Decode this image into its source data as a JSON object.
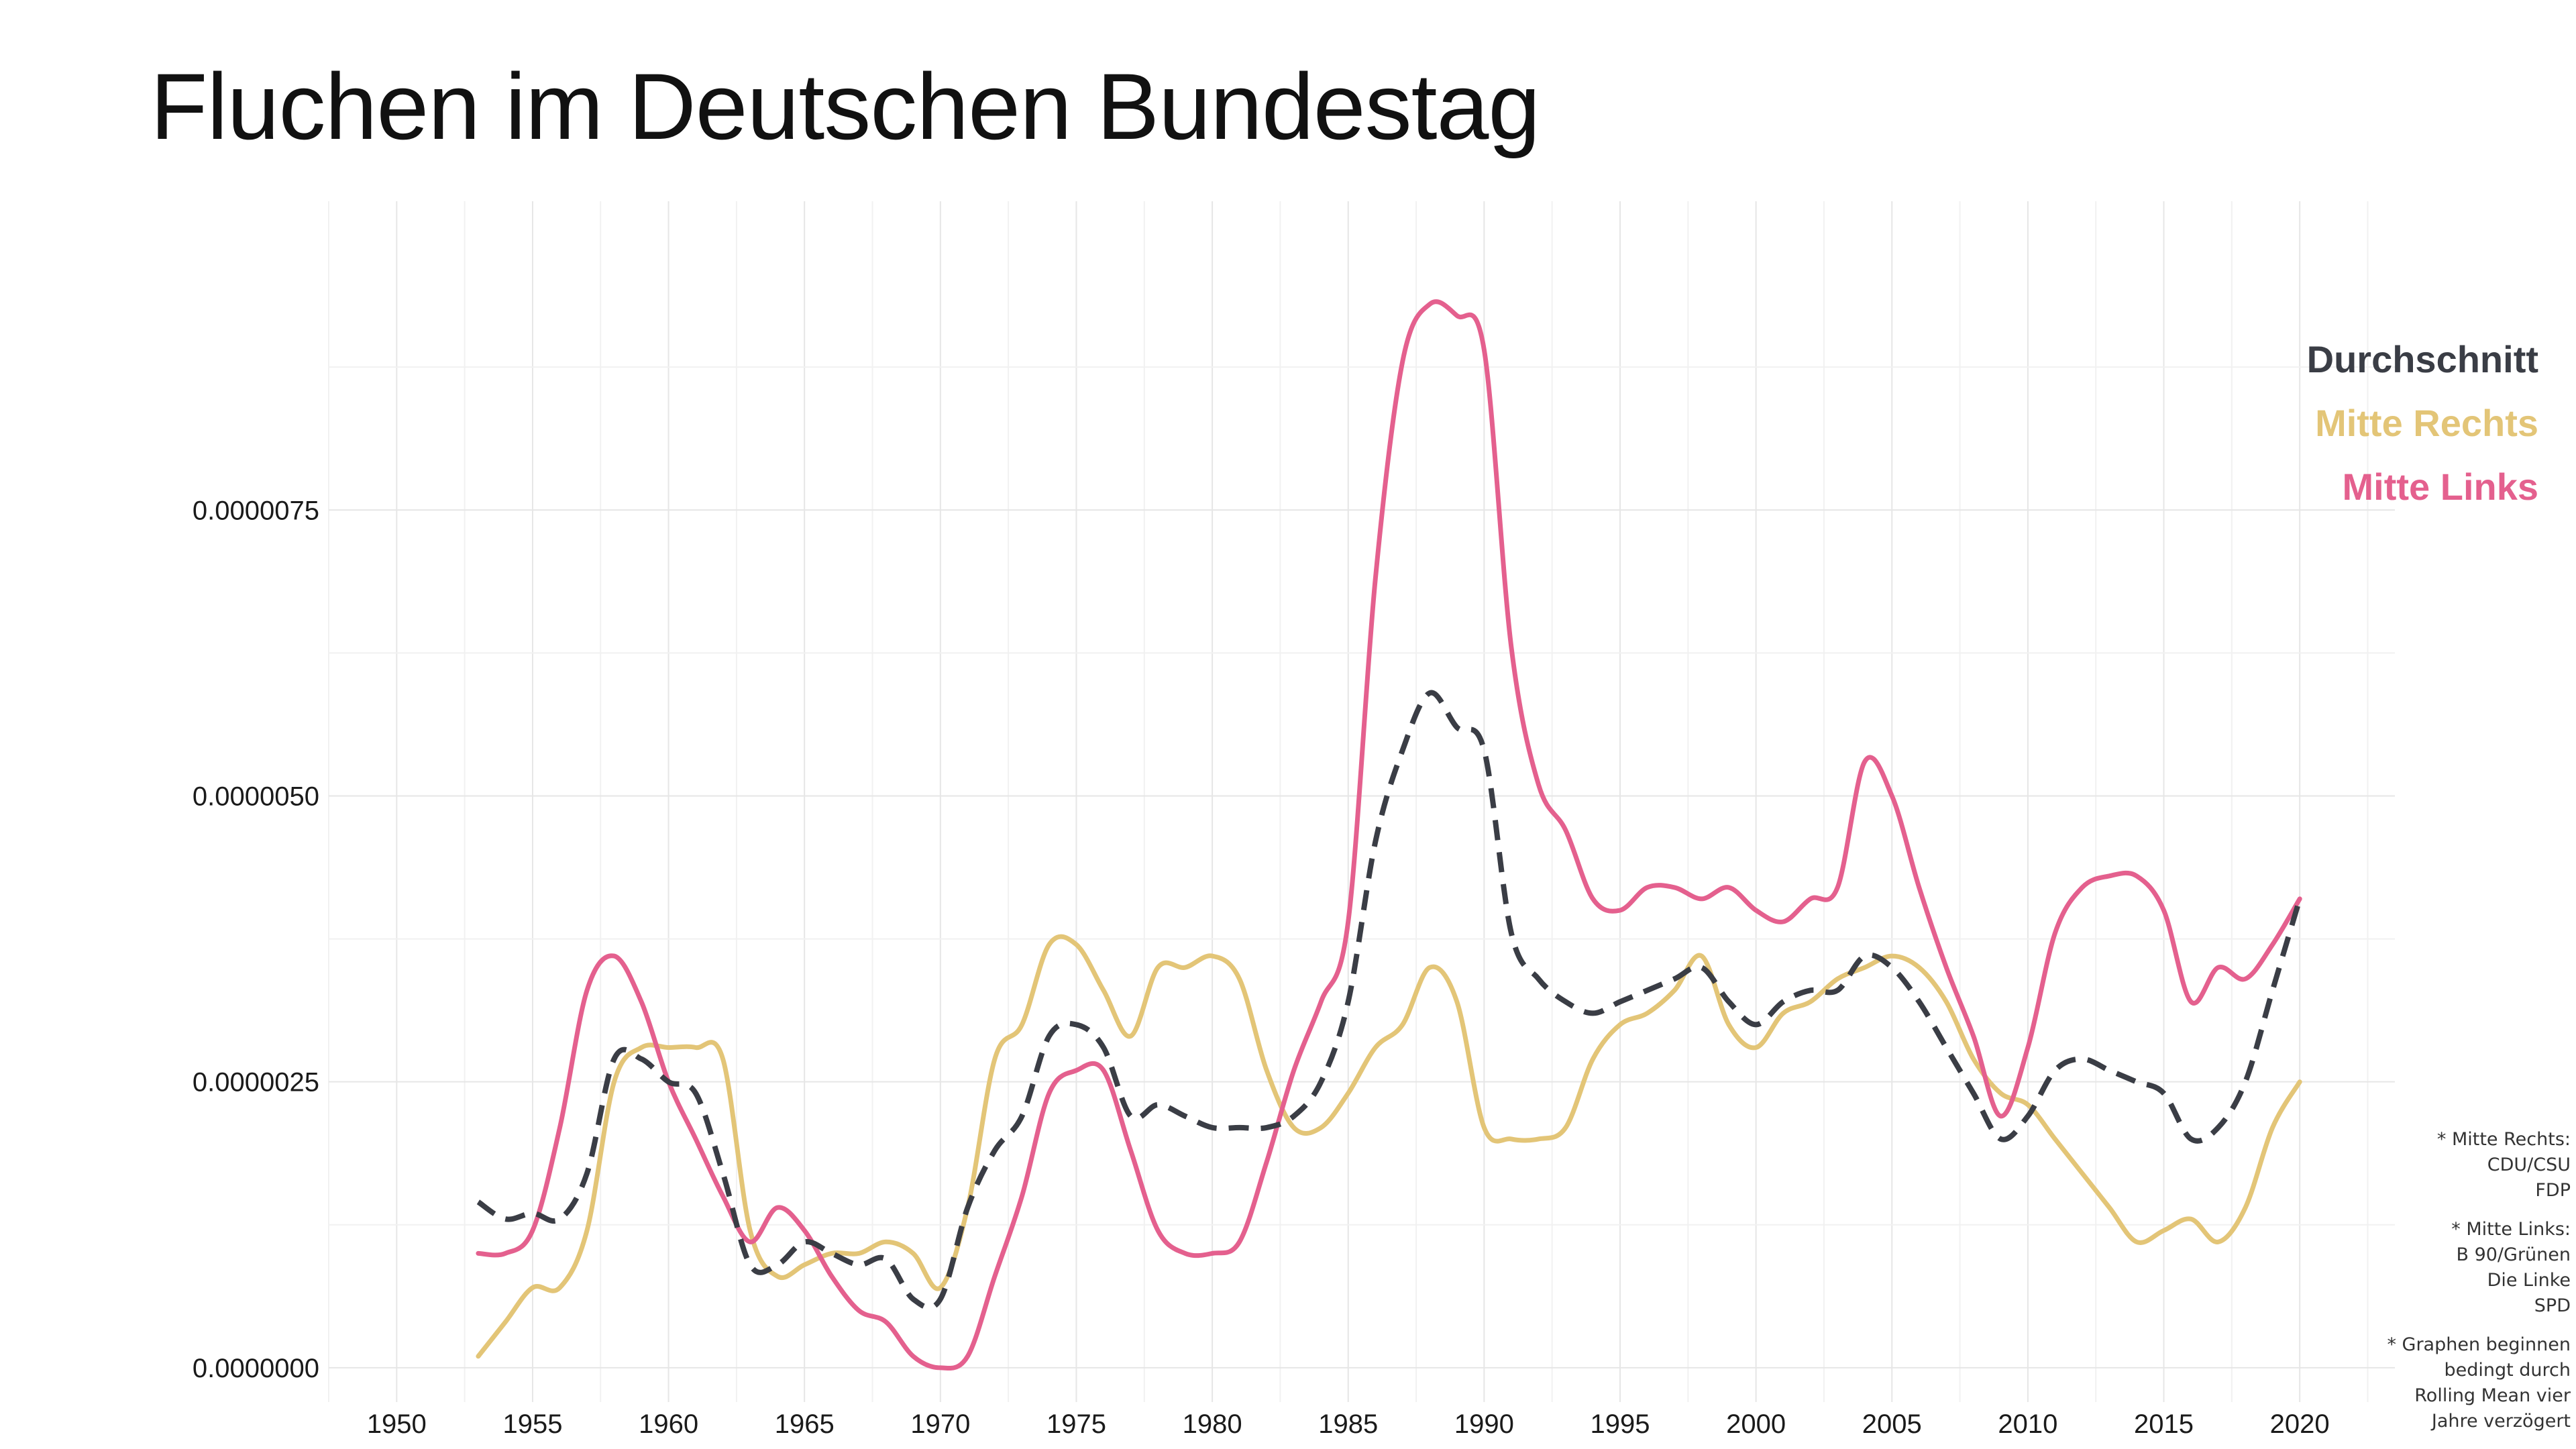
{
  "title": "Fluchen im Deutschen Bundestag",
  "legend": [
    {
      "label": "Durchschnitt",
      "color": "#3a3d45"
    },
    {
      "label": "Mitte Rechts",
      "color": "#e3c577"
    },
    {
      "label": "Mitte Links",
      "color": "#e4608e"
    }
  ],
  "notes": [
    {
      "lines": [
        "* Mitte Rechts:",
        "CDU/CSU",
        "FDP"
      ]
    },
    {
      "lines": [
        "* Mitte Links:",
        "B 90/Grünen",
        "Die Linke",
        "SPD"
      ]
    },
    {
      "lines": [
        "* Graphen beginnen",
        "bedingt durch",
        "Rolling Mean vier",
        "Jahre verzögert"
      ]
    }
  ],
  "chart_data": {
    "type": "line",
    "title": "Fluchen im Deutschen Bundestag",
    "xlabel": "",
    "ylabel": "",
    "xlim": [
      1947.5,
      2023.5
    ],
    "ylim": [
      -3e-07,
      1.02e-05
    ],
    "x_ticks": [
      1950,
      1955,
      1960,
      1965,
      1970,
      1975,
      1980,
      1985,
      1990,
      1995,
      2000,
      2005,
      2010,
      2015,
      2020
    ],
    "y_ticks": [
      0,
      2.5e-06,
      5e-06,
      7.5e-06
    ],
    "y_tick_labels": [
      "0.0000000",
      "0.0000025",
      "0.0000050",
      "0.0000075"
    ],
    "grid": true,
    "legend_position": "top-right",
    "series": [
      {
        "name": "Durchschnitt",
        "color": "#3a3d45",
        "dashed": true,
        "x": [
          1953,
          1954,
          1955,
          1956,
          1957,
          1958,
          1959,
          1960,
          1961,
          1962,
          1963,
          1964,
          1965,
          1966,
          1967,
          1968,
          1969,
          1970,
          1971,
          1972,
          1973,
          1974,
          1975,
          1976,
          1977,
          1978,
          1979,
          1980,
          1981,
          1982,
          1983,
          1984,
          1985,
          1986,
          1987,
          1988,
          1989,
          1990,
          1991,
          1992,
          1993,
          1994,
          1995,
          1996,
          1997,
          1998,
          1999,
          2000,
          2001,
          2002,
          2003,
          2004,
          2005,
          2006,
          2007,
          2008,
          2009,
          2010,
          2011,
          2012,
          2013,
          2014,
          2015,
          2016,
          2017,
          2018,
          2019,
          2020
        ],
        "y": [
          1.45e-06,
          1.3e-06,
          1.35e-06,
          1.3e-06,
          1.7e-06,
          2.7e-06,
          2.7e-06,
          2.5e-06,
          2.4e-06,
          1.7e-06,
          9e-07,
          9e-07,
          1.1e-06,
          1e-06,
          9e-07,
          9.5e-07,
          6e-07,
          6e-07,
          1.4e-06,
          1.9e-06,
          2.2e-06,
          2.9e-06,
          3e-06,
          2.8e-06,
          2.2e-06,
          2.3e-06,
          2.2e-06,
          2.1e-06,
          2.1e-06,
          2.1e-06,
          2.2e-06,
          2.5e-06,
          3.2e-06,
          4.6e-06,
          5.4e-06,
          5.9e-06,
          5.6e-06,
          5.4e-06,
          3.8e-06,
          3.4e-06,
          3.2e-06,
          3.1e-06,
          3.2e-06,
          3.3e-06,
          3.4e-06,
          3.5e-06,
          3.2e-06,
          3e-06,
          3.2e-06,
          3.3e-06,
          3.3e-06,
          3.6e-06,
          3.5e-06,
          3.2e-06,
          2.8e-06,
          2.4e-06,
          2e-06,
          2.2e-06,
          2.6e-06,
          2.7e-06,
          2.6e-06,
          2.5e-06,
          2.4e-06,
          2e-06,
          2.1e-06,
          2.5e-06,
          3.3e-06,
          4.1e-06
        ]
      },
      {
        "name": "Mitte Rechts",
        "color": "#e3c577",
        "dashed": false,
        "x": [
          1953,
          1954,
          1955,
          1956,
          1957,
          1958,
          1959,
          1960,
          1961,
          1962,
          1963,
          1964,
          1965,
          1966,
          1967,
          1968,
          1969,
          1970,
          1971,
          1972,
          1973,
          1974,
          1975,
          1976,
          1977,
          1978,
          1979,
          1980,
          1981,
          1982,
          1983,
          1984,
          1985,
          1986,
          1987,
          1988,
          1989,
          1990,
          1991,
          1992,
          1993,
          1994,
          1995,
          1996,
          1997,
          1998,
          1999,
          2000,
          2001,
          2002,
          2003,
          2004,
          2005,
          2006,
          2007,
          2008,
          2009,
          2010,
          2011,
          2012,
          2013,
          2014,
          2015,
          2016,
          2017,
          2018,
          2019,
          2020
        ],
        "y": [
          1e-07,
          4e-07,
          7e-07,
          7e-07,
          1.2e-06,
          2.5e-06,
          2.8e-06,
          2.8e-06,
          2.8e-06,
          2.7e-06,
          1.2e-06,
          8e-07,
          9e-07,
          1e-06,
          1e-06,
          1.1e-06,
          1e-06,
          7e-07,
          1.4e-06,
          2.7e-06,
          3e-06,
          3.7e-06,
          3.7e-06,
          3.3e-06,
          2.9e-06,
          3.5e-06,
          3.5e-06,
          3.6e-06,
          3.4e-06,
          2.6e-06,
          2.1e-06,
          2.1e-06,
          2.4e-06,
          2.8e-06,
          3e-06,
          3.5e-06,
          3.2e-06,
          2.1e-06,
          2e-06,
          2e-06,
          2.1e-06,
          2.7e-06,
          3e-06,
          3.1e-06,
          3.3e-06,
          3.6e-06,
          3e-06,
          2.8e-06,
          3.1e-06,
          3.2e-06,
          3.4e-06,
          3.5e-06,
          3.6e-06,
          3.5e-06,
          3.2e-06,
          2.7e-06,
          2.4e-06,
          2.3e-06,
          2e-06,
          1.7e-06,
          1.4e-06,
          1.1e-06,
          1.2e-06,
          1.3e-06,
          1.1e-06,
          1.4e-06,
          2.1e-06,
          2.5e-06
        ]
      },
      {
        "name": "Mitte Links",
        "color": "#e4608e",
        "dashed": false,
        "x": [
          1953,
          1954,
          1955,
          1956,
          1957,
          1958,
          1959,
          1960,
          1961,
          1962,
          1963,
          1964,
          1965,
          1966,
          1967,
          1968,
          1969,
          1970,
          1971,
          1972,
          1973,
          1974,
          1975,
          1976,
          1977,
          1978,
          1979,
          1980,
          1981,
          1982,
          1983,
          1984,
          1985,
          1986,
          1987,
          1988,
          1989,
          1990,
          1991,
          1992,
          1993,
          1994,
          1995,
          1996,
          1997,
          1998,
          1999,
          2000,
          2001,
          2002,
          2003,
          2004,
          2005,
          2006,
          2007,
          2008,
          2009,
          2010,
          2011,
          2012,
          2013,
          2014,
          2015,
          2016,
          2017,
          2018,
          2019,
          2020
        ],
        "y": [
          1e-06,
          1e-06,
          1.2e-06,
          2.1e-06,
          3.3e-06,
          3.6e-06,
          3.2e-06,
          2.5e-06,
          2e-06,
          1.5e-06,
          1.1e-06,
          1.4e-06,
          1.2e-06,
          8e-07,
          5e-07,
          4e-07,
          1e-07,
          0.0,
          1e-07,
          8e-07,
          1.5e-06,
          2.4e-06,
          2.6e-06,
          2.6e-06,
          1.9e-06,
          1.2e-06,
          1e-06,
          1e-06,
          1.1e-06,
          1.8e-06,
          2.6e-06,
          3.2e-06,
          3.9e-06,
          6.9e-06,
          8.8e-06,
          9.3e-06,
          9.2e-06,
          8.9e-06,
          6.3e-06,
          5.1e-06,
          4.7e-06,
          4.1e-06,
          4e-06,
          4.2e-06,
          4.2e-06,
          4.1e-06,
          4.2e-06,
          4e-06,
          3.9e-06,
          4.1e-06,
          4.2e-06,
          5.3e-06,
          5e-06,
          4.2e-06,
          3.5e-06,
          2.9e-06,
          2.2e-06,
          2.8e-06,
          3.8e-06,
          4.2e-06,
          4.3e-06,
          4.3e-06,
          4e-06,
          3.2e-06,
          3.5e-06,
          3.4e-06,
          3.7e-06,
          4.1e-06
        ]
      }
    ]
  }
}
